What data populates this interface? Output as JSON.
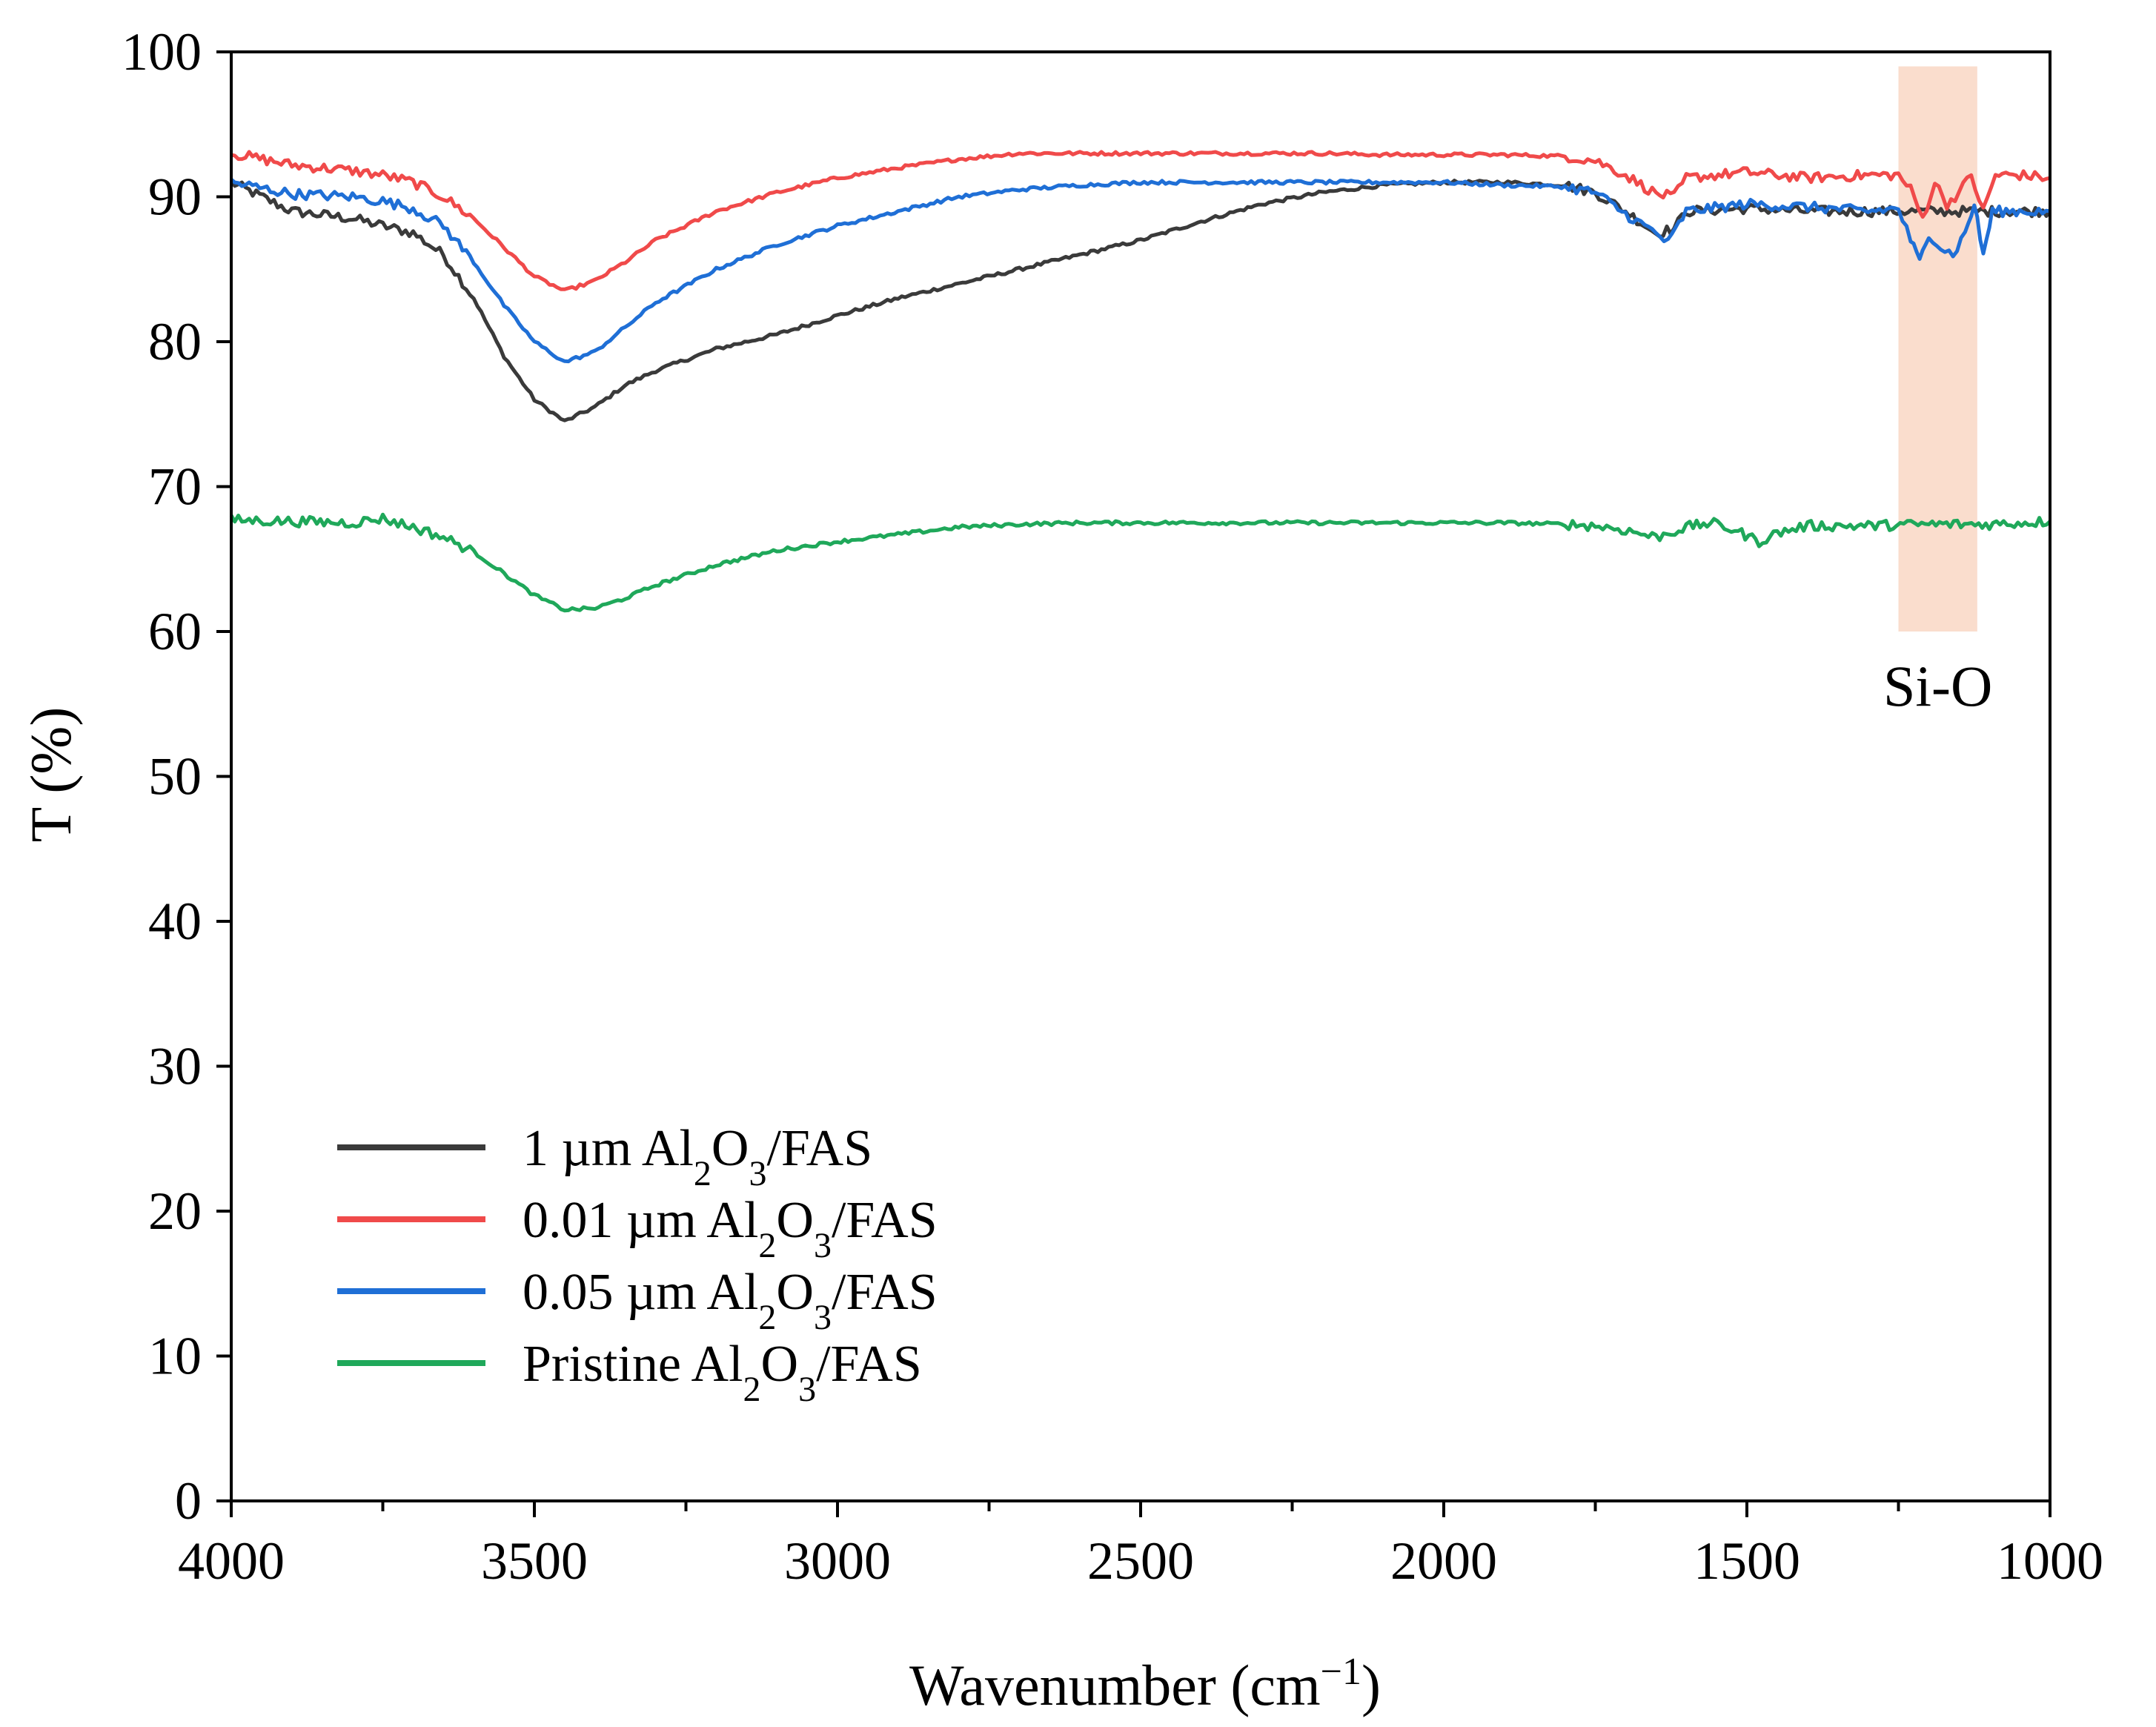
{
  "chart_data": {
    "type": "line",
    "title": "",
    "xlabel": {
      "main": "Wavenumber (cm",
      "sup": "−1",
      "close": ")"
    },
    "ylabel": "T (%)",
    "xlim": [
      4000,
      1000
    ],
    "ylim": [
      0,
      100
    ],
    "x_ticks": [
      4000,
      3500,
      3000,
      2500,
      2000,
      1500,
      1000
    ],
    "x_tick_labels": [
      "4000",
      "3500",
      "3000",
      "2500",
      "2000",
      "1500",
      "1000"
    ],
    "x_minor_ticks": [
      3750,
      3250,
      2750,
      2250,
      1750,
      1250
    ],
    "y_ticks": [
      0,
      10,
      20,
      30,
      40,
      50,
      60,
      70,
      80,
      90,
      100
    ],
    "y_tick_labels": [
      "0",
      "10",
      "20",
      "30",
      "40",
      "50",
      "60",
      "70",
      "80",
      "90",
      "100"
    ],
    "grid": false,
    "legend_position": "bottom-left",
    "highlight": {
      "label": "Si-O",
      "x_range": [
        1250,
        1120
      ],
      "y_range": [
        60,
        99
      ],
      "color": "#f9d7c4"
    },
    "series": [
      {
        "name": "1 µm Al2O3/FAS",
        "legend": {
          "prefix": "1 µm Al",
          "sub1": "2",
          "mid": "O",
          "sub2": "3",
          "suffix": "/FAS"
        },
        "color": "#3a3a3a",
        "points": [
          [
            4000,
            91
          ],
          [
            3900,
            89
          ],
          [
            3800,
            88.5
          ],
          [
            3750,
            88
          ],
          [
            3700,
            87.5
          ],
          [
            3650,
            86
          ],
          [
            3600,
            83
          ],
          [
            3550,
            79
          ],
          [
            3500,
            76
          ],
          [
            3450,
            74.5
          ],
          [
            3400,
            75.5
          ],
          [
            3350,
            77
          ],
          [
            3300,
            78
          ],
          [
            3200,
            79.5
          ],
          [
            3100,
            80.5
          ],
          [
            3000,
            81.8
          ],
          [
            2900,
            83
          ],
          [
            2800,
            84
          ],
          [
            2700,
            85
          ],
          [
            2600,
            86
          ],
          [
            2500,
            87
          ],
          [
            2400,
            88.3
          ],
          [
            2300,
            89.5
          ],
          [
            2200,
            90.3
          ],
          [
            2100,
            90.8
          ],
          [
            2000,
            91
          ],
          [
            1900,
            91
          ],
          [
            1800,
            90.8
          ],
          [
            1750,
            90.3
          ],
          [
            1700,
            89
          ],
          [
            1650,
            87.5
          ],
          [
            1620,
            87.8
          ],
          [
            1600,
            89
          ],
          [
            1500,
            89.2
          ],
          [
            1400,
            89
          ],
          [
            1300,
            89
          ],
          [
            1000,
            89
          ]
        ]
      },
      {
        "name": "0.01 µm Al2O3/FAS",
        "legend": {
          "prefix": "0.01 µm Al",
          "sub1": "2",
          "mid": "O",
          "sub2": "3",
          "suffix": "/FAS"
        },
        "color": "#f04a4a",
        "points": [
          [
            4000,
            93
          ],
          [
            3900,
            92.2
          ],
          [
            3800,
            91.8
          ],
          [
            3750,
            91.5
          ],
          [
            3700,
            91
          ],
          [
            3650,
            90
          ],
          [
            3600,
            88.5
          ],
          [
            3550,
            86.5
          ],
          [
            3500,
            84.5
          ],
          [
            3450,
            83.5
          ],
          [
            3400,
            84.2
          ],
          [
            3350,
            85.5
          ],
          [
            3300,
            87
          ],
          [
            3200,
            89
          ],
          [
            3100,
            90.3
          ],
          [
            3000,
            91.3
          ],
          [
            2900,
            92
          ],
          [
            2800,
            92.6
          ],
          [
            2700,
            93
          ],
          [
            2600,
            93
          ],
          [
            2500,
            93
          ],
          [
            2400,
            93
          ],
          [
            2300,
            93
          ],
          [
            2200,
            93
          ],
          [
            2100,
            92.9
          ],
          [
            2000,
            92.9
          ],
          [
            1900,
            92.9
          ],
          [
            1800,
            92.8
          ],
          [
            1750,
            92.5
          ],
          [
            1700,
            91.5
          ],
          [
            1650,
            90.2
          ],
          [
            1620,
            90
          ],
          [
            1600,
            91.3
          ],
          [
            1500,
            91.7
          ],
          [
            1400,
            91.3
          ],
          [
            1300,
            91.5
          ],
          [
            1250,
            91.5
          ],
          [
            1230,
            90.5
          ],
          [
            1210,
            88.5
          ],
          [
            1190,
            91
          ],
          [
            1170,
            89.5
          ],
          [
            1150,
            90.3
          ],
          [
            1130,
            91.5
          ],
          [
            1110,
            89
          ],
          [
            1090,
            91.5
          ],
          [
            1050,
            91.5
          ],
          [
            1000,
            91.3
          ]
        ]
      },
      {
        "name": "0.05 µm Al2O3/FAS",
        "legend": {
          "prefix": "0.05 µm Al",
          "sub1": "2",
          "mid": "O",
          "sub2": "3",
          "suffix": "/FAS"
        },
        "color": "#1f6fd6",
        "points": [
          [
            4000,
            91
          ],
          [
            3900,
            90.2
          ],
          [
            3800,
            90
          ],
          [
            3750,
            89.7
          ],
          [
            3700,
            89.2
          ],
          [
            3650,
            88
          ],
          [
            3600,
            85.5
          ],
          [
            3550,
            82.5
          ],
          [
            3500,
            80
          ],
          [
            3450,
            78.6
          ],
          [
            3400,
            79.3
          ],
          [
            3350,
            81
          ],
          [
            3300,
            82.7
          ],
          [
            3200,
            85
          ],
          [
            3100,
            86.7
          ],
          [
            3000,
            88
          ],
          [
            2900,
            89
          ],
          [
            2800,
            90
          ],
          [
            2700,
            90.5
          ],
          [
            2600,
            90.8
          ],
          [
            2500,
            91
          ],
          [
            2400,
            91
          ],
          [
            2300,
            91
          ],
          [
            2200,
            91
          ],
          [
            2100,
            91
          ],
          [
            2000,
            91
          ],
          [
            1900,
            90.8
          ],
          [
            1800,
            90.7
          ],
          [
            1750,
            90.3
          ],
          [
            1700,
            88.8
          ],
          [
            1650,
            87.5
          ],
          [
            1630,
            86.8
          ],
          [
            1600,
            89
          ],
          [
            1500,
            89.5
          ],
          [
            1400,
            89.3
          ],
          [
            1300,
            89
          ],
          [
            1250,
            89.2
          ],
          [
            1230,
            87
          ],
          [
            1215,
            85.5
          ],
          [
            1200,
            87.5
          ],
          [
            1180,
            86.5
          ],
          [
            1160,
            86
          ],
          [
            1140,
            87.5
          ],
          [
            1125,
            89.5
          ],
          [
            1110,
            86
          ],
          [
            1095,
            89
          ],
          [
            1050,
            89
          ],
          [
            1000,
            89
          ]
        ]
      },
      {
        "name": "Pristine Al2O3/FAS",
        "legend": {
          "prefix": "Pristine Al",
          "sub1": "2",
          "mid": "O",
          "sub2": "3",
          "suffix": "/FAS"
        },
        "color": "#1fa85a",
        "points": [
          [
            4000,
            67.7
          ],
          [
            3900,
            67.6
          ],
          [
            3800,
            67.5
          ],
          [
            3750,
            67.8
          ],
          [
            3700,
            67.2
          ],
          [
            3650,
            66.5
          ],
          [
            3600,
            65.5
          ],
          [
            3550,
            64
          ],
          [
            3500,
            62.5
          ],
          [
            3450,
            61.5
          ],
          [
            3400,
            61.6
          ],
          [
            3350,
            62.3
          ],
          [
            3300,
            63.2
          ],
          [
            3200,
            64.6
          ],
          [
            3100,
            65.6
          ],
          [
            3000,
            66.2
          ],
          [
            2900,
            66.7
          ],
          [
            2800,
            67.2
          ],
          [
            2700,
            67.4
          ],
          [
            2600,
            67.5
          ],
          [
            2500,
            67.5
          ],
          [
            2400,
            67.5
          ],
          [
            2300,
            67.5
          ],
          [
            2200,
            67.5
          ],
          [
            2100,
            67.5
          ],
          [
            2000,
            67.5
          ],
          [
            1900,
            67.5
          ],
          [
            1800,
            67.4
          ],
          [
            1750,
            67.3
          ],
          [
            1700,
            67
          ],
          [
            1650,
            66.5
          ],
          [
            1600,
            67.2
          ],
          [
            1560,
            67.5
          ],
          [
            1520,
            67
          ],
          [
            1480,
            66.2
          ],
          [
            1450,
            66.8
          ],
          [
            1400,
            67.3
          ],
          [
            1300,
            67.3
          ],
          [
            1200,
            67.4
          ],
          [
            1100,
            67.4
          ],
          [
            1000,
            67.6
          ]
        ]
      }
    ]
  }
}
